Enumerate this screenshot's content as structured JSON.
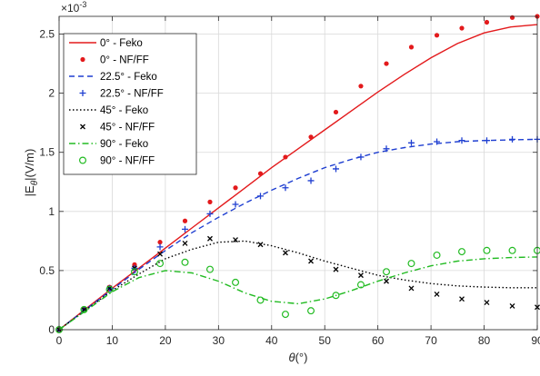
{
  "chart_data": {
    "type": "line",
    "xlabel_main": "θ",
    "xlabel_unit": "(°)",
    "ylabel_main": "|E",
    "ylabel_sub": "θ",
    "ylabel_unit": "|(V/m)",
    "y_exponent_base": "×10",
    "y_exponent_power": "-3",
    "xlim": [
      0,
      90
    ],
    "ylim": [
      0,
      2.65
    ],
    "x_ticks": [
      0,
      10,
      20,
      30,
      40,
      50,
      60,
      70,
      80,
      90
    ],
    "x_tick_labels": [
      "0",
      "10",
      "20",
      "30",
      "40",
      "50",
      "60",
      "70",
      "80",
      "90"
    ],
    "y_ticks": [
      0,
      0.5,
      1,
      1.5,
      2,
      2.5
    ],
    "y_tick_labels": [
      "0",
      "0.5",
      "1",
      "1.5",
      "2",
      "2.5"
    ],
    "grid": true,
    "legend_position": "top-left",
    "series": [
      {
        "name": "0° - Feko",
        "kind": "line",
        "style": "solid",
        "color": "#e31a1c",
        "x": [
          0,
          5,
          10,
          15,
          20,
          25,
          30,
          35,
          40,
          45,
          50,
          55,
          60,
          65,
          70,
          75,
          80,
          85,
          90
        ],
        "y": [
          0,
          0.175,
          0.35,
          0.52,
          0.69,
          0.86,
          1.03,
          1.2,
          1.37,
          1.53,
          1.69,
          1.85,
          2.01,
          2.16,
          2.3,
          2.42,
          2.51,
          2.56,
          2.58
        ]
      },
      {
        "name": "0° - NF/FF",
        "kind": "marker",
        "marker": "dot",
        "color": "#e31a1c",
        "x": [
          0,
          4.7,
          9.5,
          14.2,
          19,
          23.7,
          28.4,
          33.2,
          37.9,
          42.6,
          47.4,
          52.1,
          56.8,
          61.6,
          66.3,
          71.1,
          75.8,
          80.5,
          85.3,
          90
        ],
        "y": [
          0,
          0.18,
          0.36,
          0.55,
          0.74,
          0.92,
          1.08,
          1.2,
          1.32,
          1.46,
          1.63,
          1.84,
          2.06,
          2.25,
          2.39,
          2.49,
          2.55,
          2.6,
          2.64,
          2.65
        ]
      },
      {
        "name": "22.5° - Feko",
        "kind": "line",
        "style": "dashed",
        "color": "#1f3fd1",
        "x": [
          0,
          5,
          10,
          15,
          20,
          25,
          30,
          35,
          40,
          45,
          50,
          55,
          60,
          65,
          70,
          75,
          80,
          85,
          90
        ],
        "y": [
          0,
          0.17,
          0.34,
          0.51,
          0.67,
          0.82,
          0.95,
          1.07,
          1.18,
          1.28,
          1.37,
          1.44,
          1.5,
          1.54,
          1.57,
          1.59,
          1.6,
          1.605,
          1.61
        ]
      },
      {
        "name": "22.5° - NF/FF",
        "kind": "marker",
        "marker": "plus",
        "color": "#1f3fd1",
        "x": [
          0,
          4.7,
          9.5,
          14.2,
          19,
          23.7,
          28.4,
          33.2,
          37.9,
          42.6,
          47.4,
          52.1,
          56.8,
          61.6,
          66.3,
          71.1,
          75.8,
          80.5,
          85.3,
          90
        ],
        "y": [
          0,
          0.17,
          0.35,
          0.52,
          0.7,
          0.85,
          0.98,
          1.06,
          1.13,
          1.2,
          1.26,
          1.36,
          1.46,
          1.53,
          1.58,
          1.59,
          1.6,
          1.6,
          1.61,
          1.61
        ]
      },
      {
        "name": "45° - Feko",
        "kind": "line",
        "style": "dotted",
        "color": "#000000",
        "x": [
          0,
          5,
          10,
          15,
          20,
          25,
          30,
          35,
          40,
          45,
          50,
          55,
          60,
          65,
          70,
          75,
          80,
          85,
          90
        ],
        "y": [
          0,
          0.165,
          0.33,
          0.47,
          0.6,
          0.68,
          0.74,
          0.75,
          0.71,
          0.65,
          0.58,
          0.52,
          0.46,
          0.42,
          0.39,
          0.37,
          0.36,
          0.355,
          0.355
        ]
      },
      {
        "name": "45° - NF/FF",
        "kind": "marker",
        "marker": "x",
        "color": "#000000",
        "x": [
          0,
          4.7,
          9.5,
          14.2,
          19,
          23.7,
          28.4,
          33.2,
          37.9,
          42.6,
          47.4,
          52.1,
          56.8,
          61.6,
          66.3,
          71.1,
          75.8,
          80.5,
          85.3,
          90
        ],
        "y": [
          0,
          0.17,
          0.35,
          0.52,
          0.64,
          0.73,
          0.77,
          0.76,
          0.72,
          0.65,
          0.58,
          0.51,
          0.46,
          0.41,
          0.35,
          0.3,
          0.26,
          0.23,
          0.2,
          0.19
        ]
      },
      {
        "name": "90° - Feko",
        "kind": "line",
        "style": "dashdot",
        "color": "#22bb22",
        "x": [
          0,
          5,
          10,
          15,
          20,
          25,
          30,
          35,
          40,
          45,
          50,
          55,
          60,
          65,
          70,
          75,
          80,
          85,
          90
        ],
        "y": [
          0,
          0.16,
          0.32,
          0.44,
          0.5,
          0.48,
          0.41,
          0.31,
          0.24,
          0.22,
          0.26,
          0.33,
          0.41,
          0.48,
          0.54,
          0.58,
          0.6,
          0.61,
          0.615
        ]
      },
      {
        "name": "90° - NF/FF",
        "kind": "marker",
        "marker": "circle",
        "color": "#22bb22",
        "x": [
          0,
          4.7,
          9.5,
          14.2,
          19,
          23.7,
          28.4,
          33.2,
          37.9,
          42.6,
          47.4,
          52.1,
          56.8,
          61.6,
          66.3,
          71.1,
          75.8,
          80.5,
          85.3,
          90
        ],
        "y": [
          0,
          0.17,
          0.34,
          0.49,
          0.56,
          0.57,
          0.51,
          0.4,
          0.25,
          0.13,
          0.16,
          0.29,
          0.38,
          0.49,
          0.56,
          0.63,
          0.66,
          0.67,
          0.67,
          0.67
        ]
      }
    ]
  }
}
